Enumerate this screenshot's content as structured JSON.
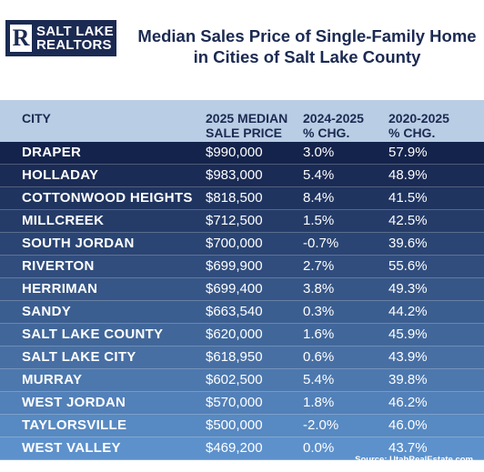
{
  "logo": {
    "mark": "R",
    "line1": "SALT LAKE",
    "line2": "REALTORS"
  },
  "title": "Median Sales Price of Single-Family Home\nin Cities of Salt Lake County",
  "columns": [
    "CITY",
    "2025 MEDIAN\nSALE PRICE",
    "2024-2025\n% CHG.",
    "2020-2025\n% CHG."
  ],
  "colors": {
    "dark_navy": "#1b2a52",
    "header_blue": "#b9cde4",
    "row_start": "#14234b",
    "row_end": "#5d91cc"
  },
  "chart_data": {
    "type": "table",
    "title": "Median Sales Price of Single-Family Home in Cities of Salt Lake County",
    "columns": [
      "CITY",
      "2025 MEDIAN SALE PRICE",
      "2024-2025 % CHG.",
      "2020-2025 % CHG."
    ],
    "rows": [
      [
        "DRAPER",
        "$990,000",
        "3.0%",
        "57.9%"
      ],
      [
        "HOLLADAY",
        "$983,000",
        "5.4%",
        "48.9%"
      ],
      [
        "COTTONWOOD HEIGHTS",
        "$818,500",
        "8.4%",
        "41.5%"
      ],
      [
        "MILLCREEK",
        "$712,500",
        "1.5%",
        "42.5%"
      ],
      [
        "SOUTH JORDAN",
        "$700,000",
        "-0.7%",
        "39.6%"
      ],
      [
        "RIVERTON",
        "$699,900",
        "2.7%",
        "55.6%"
      ],
      [
        "HERRIMAN",
        "$699,400",
        "3.8%",
        "49.3%"
      ],
      [
        "SANDY",
        "$663,540",
        "0.3%",
        "44.2%"
      ],
      [
        "SALT LAKE COUNTY",
        "$620,000",
        "1.6%",
        "45.9%"
      ],
      [
        "SALT LAKE CITY",
        "$618,950",
        "0.6%",
        "43.9%"
      ],
      [
        "MURRAY",
        "$602,500",
        "5.4%",
        "39.8%"
      ],
      [
        "WEST JORDAN",
        "$570,000",
        "1.8%",
        "46.2%"
      ],
      [
        "TAYLORSVILLE",
        "$500,000",
        "-2.0%",
        "46.0%"
      ],
      [
        "WEST VALLEY",
        "$469,200",
        "0.0%",
        "43.7%"
      ]
    ]
  },
  "source": "Source: UtahRealEstate.com"
}
